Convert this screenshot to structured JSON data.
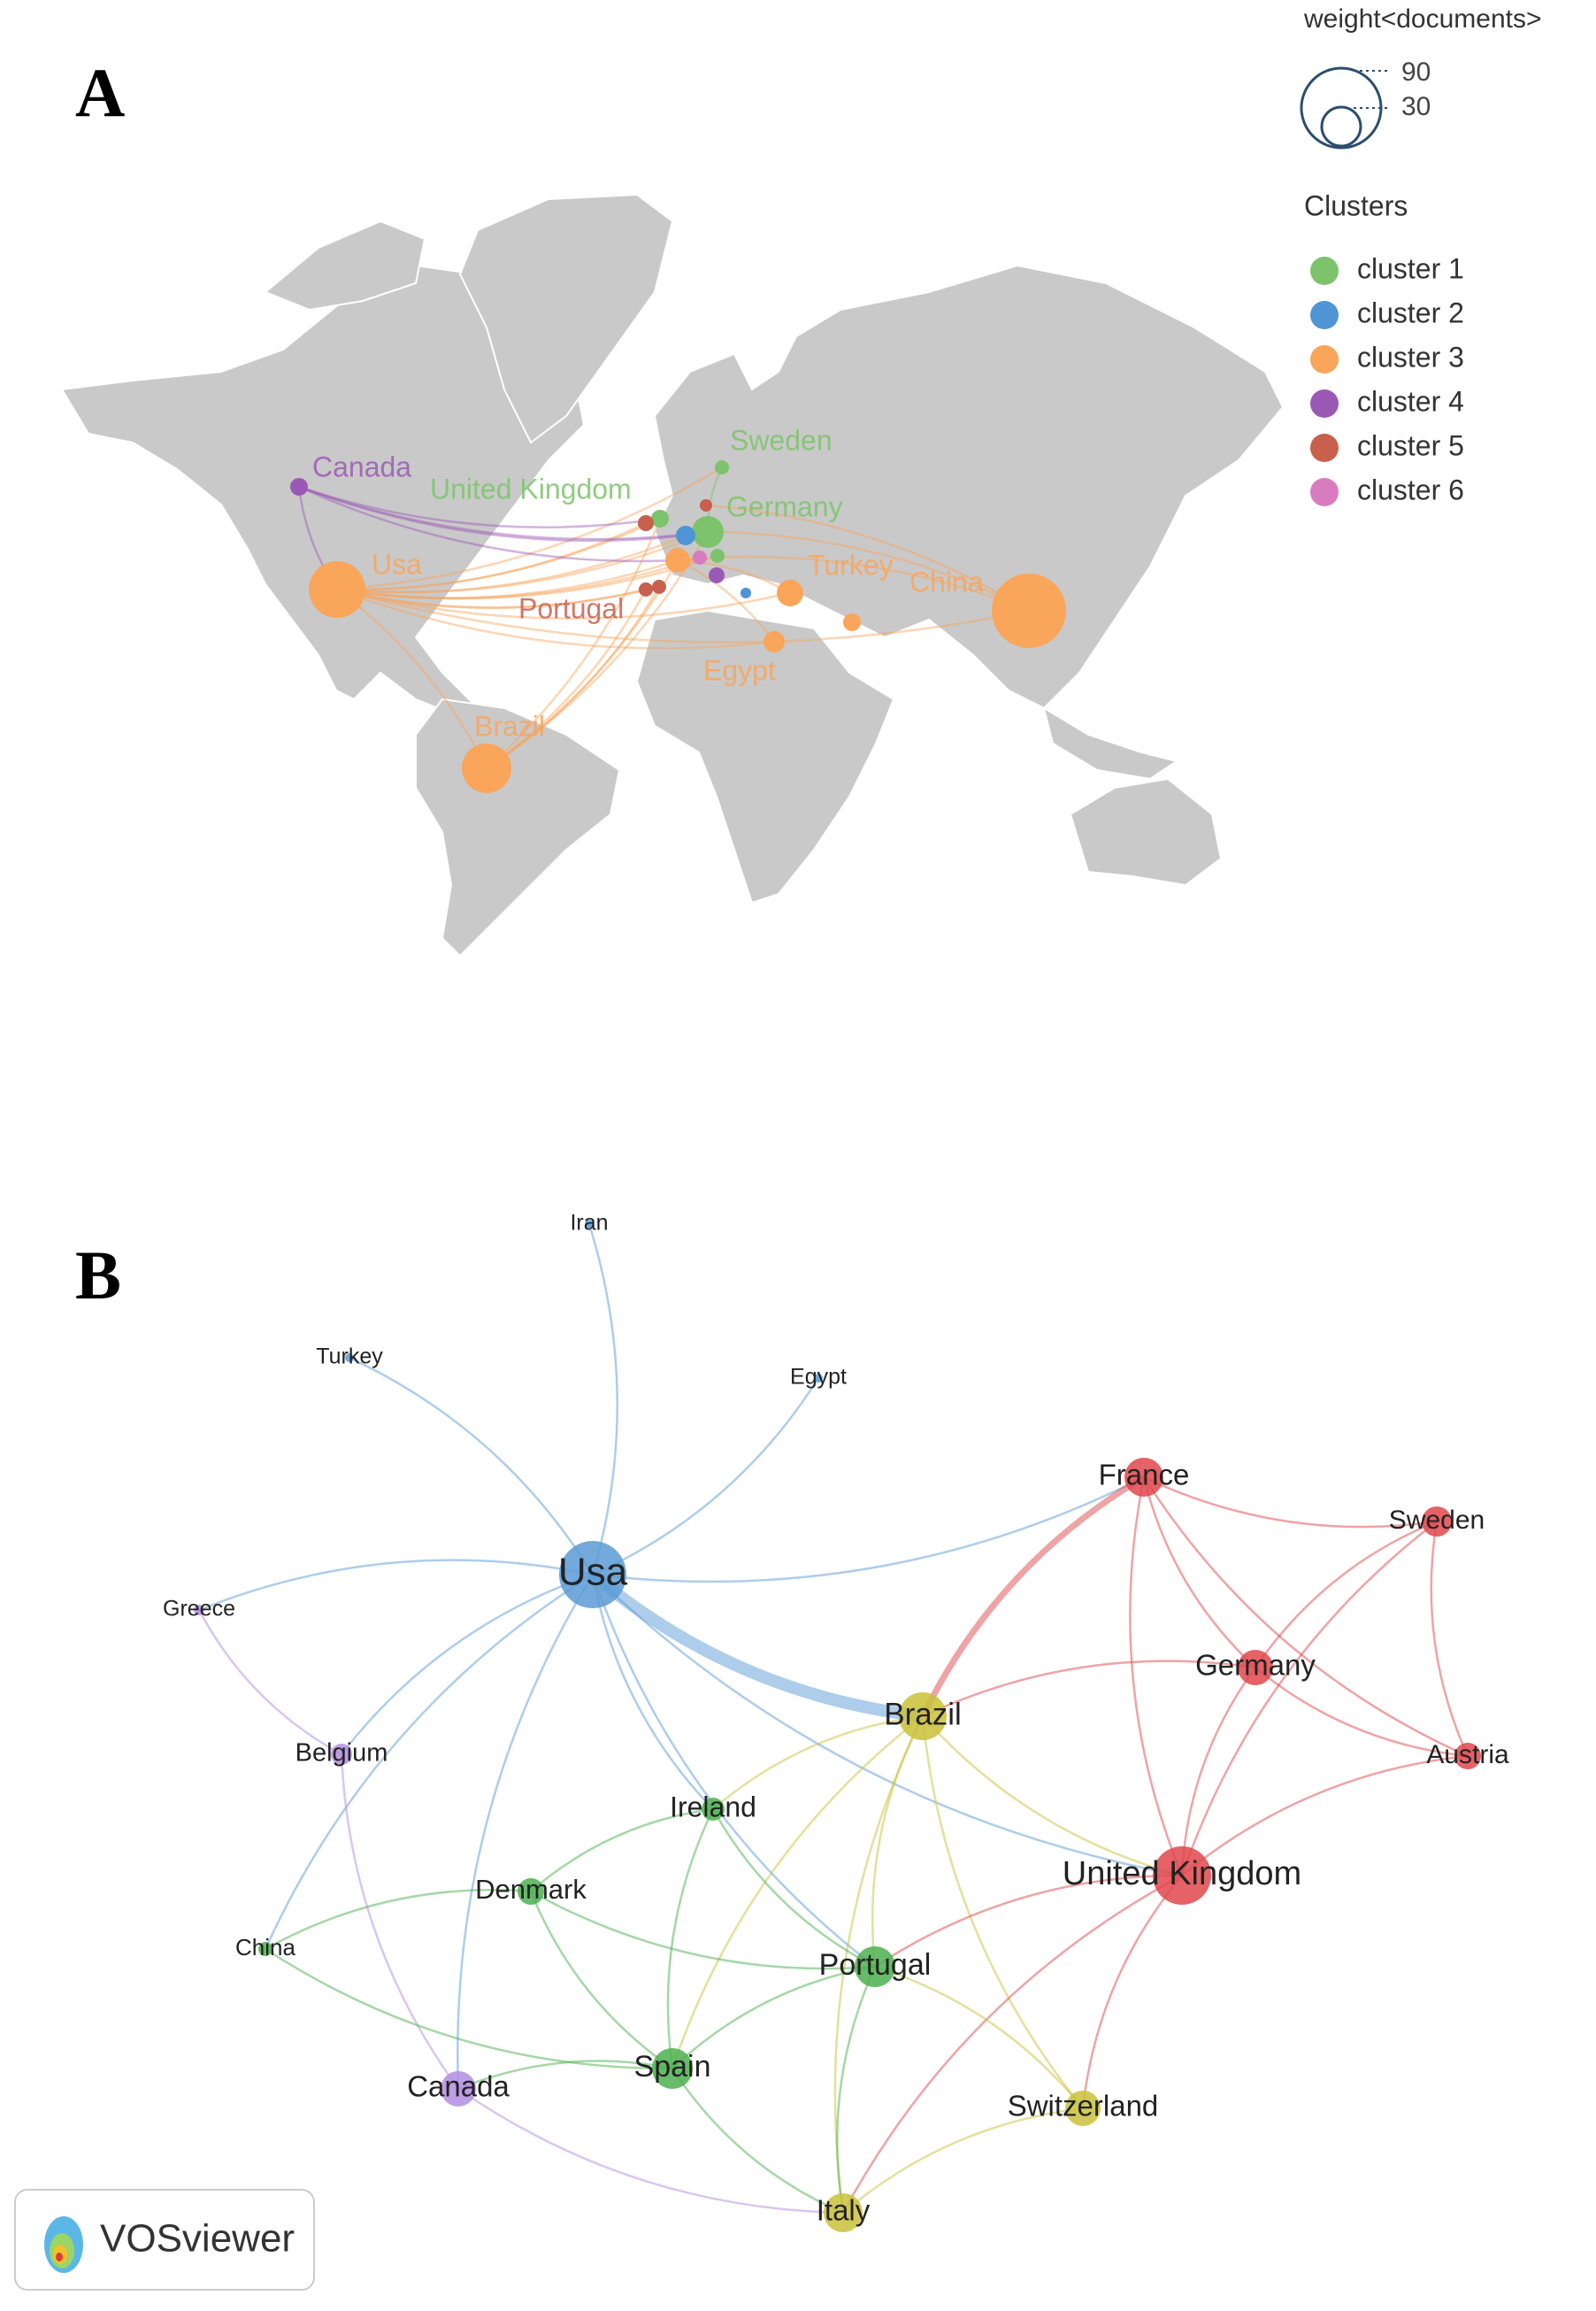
{
  "panel_a": {
    "label": "A",
    "size_legend": {
      "title": "weight<documents>",
      "values": [
        90,
        30
      ]
    },
    "clusters_title": "Clusters",
    "clusters": [
      {
        "name": "cluster 1",
        "color": "#7cc36b"
      },
      {
        "name": "cluster 2",
        "color": "#4f94d4"
      },
      {
        "name": "cluster 3",
        "color": "#f9a55a"
      },
      {
        "name": "cluster 4",
        "color": "#9b59b6"
      },
      {
        "name": "cluster 5",
        "color": "#c8604d"
      },
      {
        "name": "cluster 6",
        "color": "#d97bbf"
      }
    ],
    "country_labels": [
      "Canada",
      "Usa",
      "Brazil",
      "United Kingdom",
      "Sweden",
      "Germany",
      "Portugal",
      "Turkey",
      "China",
      "Egypt"
    ]
  },
  "panel_b": {
    "label": "B",
    "nodes": [
      "Iran",
      "Turkey",
      "Egypt",
      "Usa",
      "Greece",
      "France",
      "Sweden",
      "Germany",
      "Austria",
      "Brazil",
      "Belgium",
      "Ireland",
      "United Kingdom",
      "Denmark",
      "China",
      "Portugal",
      "Spain",
      "Canada",
      "Switzerland",
      "Italy"
    ],
    "brand": "VOSviewer"
  }
}
